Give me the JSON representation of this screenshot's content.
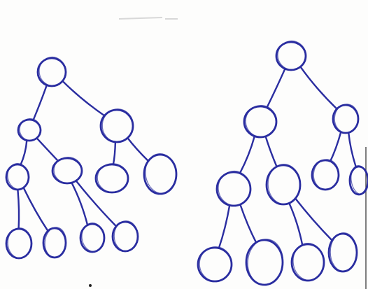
{
  "colors": {
    "paper": "#fdfdfc",
    "ink": "#2a2da0",
    "faint_mark": "#d8d8d8"
  },
  "diagram": {
    "description_type": "two hand-drawn binary trees",
    "trees": [
      {
        "id": "left-tree",
        "nodes": [
          "root",
          "a",
          "b",
          "c",
          "d",
          "e",
          "f",
          "g",
          "h",
          "i",
          "j"
        ],
        "edges": [
          [
            "root",
            "a"
          ],
          [
            "root",
            "b"
          ],
          [
            "a",
            "c"
          ],
          [
            "a",
            "d"
          ],
          [
            "b",
            "e"
          ],
          [
            "b",
            "f"
          ],
          [
            "c",
            "g"
          ],
          [
            "c",
            "h"
          ],
          [
            "d",
            "i"
          ],
          [
            "d",
            "j"
          ]
        ]
      },
      {
        "id": "right-tree",
        "nodes": [
          "root",
          "a",
          "b",
          "c",
          "d",
          "e",
          "f",
          "g",
          "h",
          "i",
          "j"
        ],
        "edges": [
          [
            "root",
            "a"
          ],
          [
            "root",
            "b"
          ],
          [
            "a",
            "c"
          ],
          [
            "a",
            "d"
          ],
          [
            "b",
            "e"
          ],
          [
            "b",
            "f"
          ],
          [
            "c",
            "g"
          ],
          [
            "c",
            "h"
          ],
          [
            "d",
            "i"
          ],
          [
            "d",
            "j"
          ]
        ]
      }
    ]
  }
}
